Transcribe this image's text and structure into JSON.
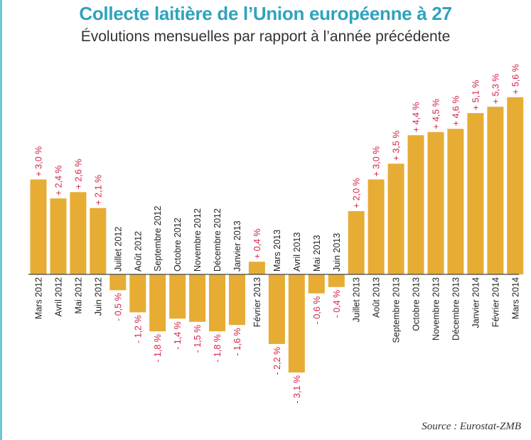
{
  "title": "Collecte laitière de l’Union européenne à 27",
  "subtitle": "Évolutions mensuelles par rapport à l’année précédente",
  "source": "Source : Eurostat-ZMB",
  "colors": {
    "bar": "#e6ac34",
    "value_label": "#d4234a",
    "axis": "#444444",
    "title": "#2fa3bd",
    "side_rule": "#6fc7da"
  },
  "chart_data": {
    "type": "bar",
    "title": "Collecte laitière de l’Union européenne à 27",
    "subtitle": "Évolutions mensuelles par rapport à l’année précédente",
    "xlabel": "",
    "ylabel": "",
    "grid": false,
    "categories": [
      "Mars 2012",
      "Avril 2012",
      "Mai 2012",
      "Juin 2012",
      "Juillet 2012",
      "Août 2012",
      "Septembre 2012",
      "Octobre 2012",
      "Novembre 2012",
      "Décembre 2012",
      "Janvier 2013",
      "Février 2013",
      "Mars 2013",
      "Avril 2013",
      "Mai 2013",
      "Juin 2013",
      "Juillet 2013",
      "Août 2013",
      "Septembre 2013",
      "Octobre 2013",
      "Novembre 2013",
      "Décembre 2013",
      "Janvier 2014",
      "Février 2014",
      "Mars 2014"
    ],
    "values": [
      3.0,
      2.4,
      2.6,
      2.1,
      -0.5,
      -1.2,
      -1.8,
      -1.4,
      -1.5,
      -1.8,
      -1.6,
      0.4,
      -2.2,
      -3.1,
      -0.6,
      -0.4,
      2.0,
      3.0,
      3.5,
      4.4,
      4.5,
      4.6,
      5.1,
      5.3,
      5.6
    ],
    "value_labels": [
      "+ 3,0 %",
      "+ 2,4 %",
      "+ 2,6 %",
      "+ 2,1 %",
      "- 0,5 %",
      "- 1,2 %",
      "- 1,8 %",
      "- 1,4 %",
      "- 1,5 %",
      "- 1,8 %",
      "- 1,6 %",
      "+ 0,4 %",
      "- 2,2 %",
      "- 3,1 %",
      "- 0,6 %",
      "- 0,4 %",
      "+ 2,0 %",
      "+ 3,0 %",
      "+ 3,5 %",
      "+ 4,4 %",
      "+ 4,5 %",
      "+ 4,6 %",
      "+ 5,1 %",
      "+ 5,3 %",
      "+ 5,6 %"
    ],
    "unit": "%"
  }
}
